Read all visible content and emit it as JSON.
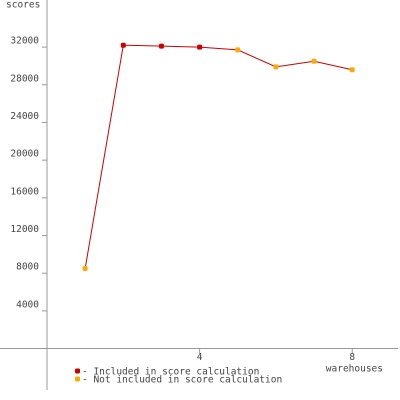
{
  "chart_data": {
    "type": "line",
    "y_label": "scores",
    "x_label": "warehouses",
    "x": [
      1,
      2,
      3,
      4,
      5,
      6,
      7,
      8
    ],
    "values": [
      8500,
      32200,
      32100,
      32000,
      31700,
      29900,
      30500,
      29600
    ],
    "line_color": "#cc0000",
    "point_colors": [
      "#ffaa00",
      "#cc0000",
      "#cc0000",
      "#cc0000",
      "#ffaa00",
      "#ffaa00",
      "#ffaa00",
      "#ffaa00"
    ],
    "legend": [
      {
        "name": "- Included in score calculation",
        "color": "#cc0000"
      },
      {
        "name": "- Not included in score calculation",
        "color": "#ffaa00"
      }
    ],
    "xlim": [
      0,
      9.2
    ],
    "xticks": [
      4,
      8
    ],
    "ylim": [
      -4400,
      37000
    ],
    "yticks": [
      4000,
      8000,
      12000,
      16000,
      20000,
      24000,
      28000,
      32000
    ],
    "grid": false
  }
}
